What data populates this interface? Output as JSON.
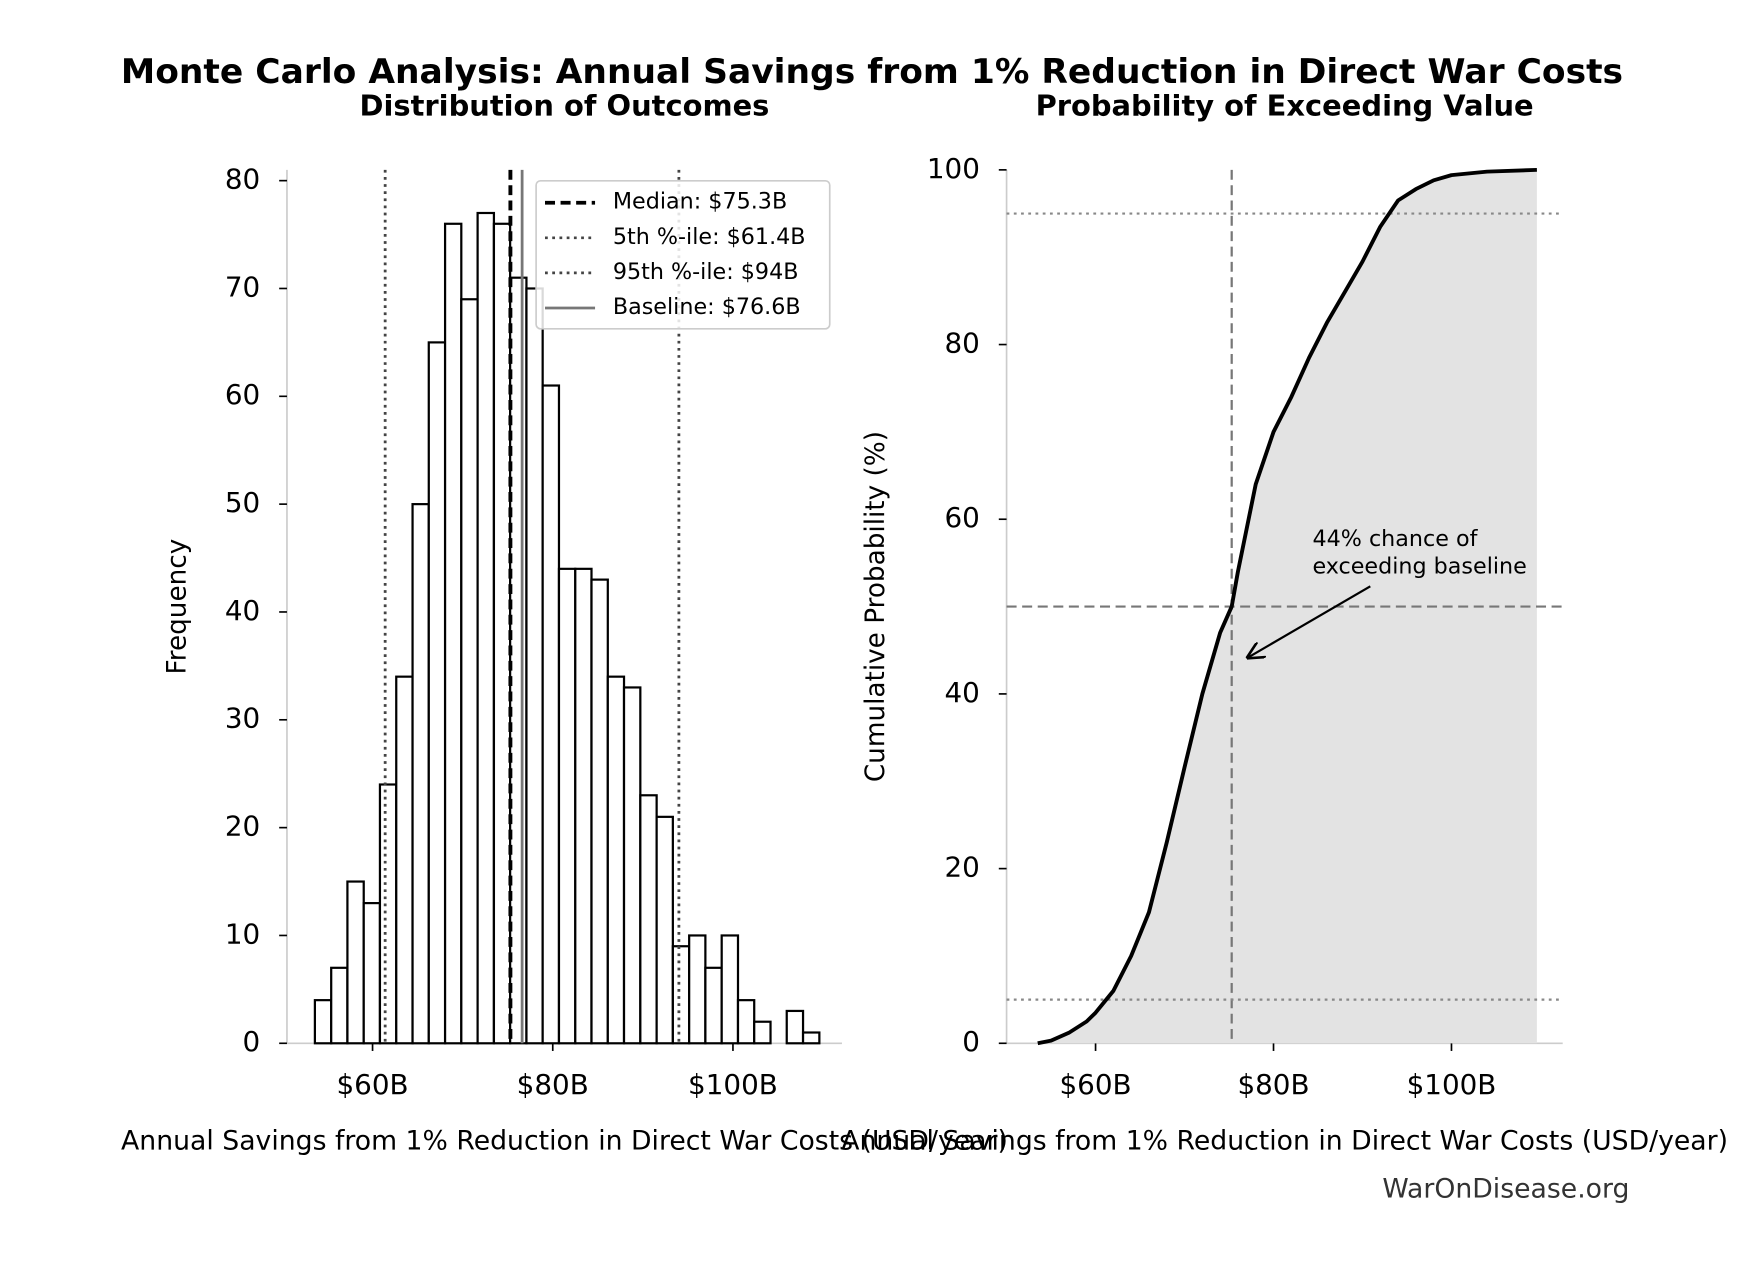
{
  "title": "Monte Carlo Analysis: Annual Savings from 1% Reduction in Direct War Costs",
  "source": "WarOnDisease.org",
  "chart_data": [
    {
      "type": "histogram",
      "title": "Distribution of Outcomes",
      "x_label": "Annual Savings from 1% Reduction in Direct War Costs (USD/year)",
      "y_label": "Frequency",
      "bins": [
        53.6,
        55.41,
        57.21,
        59.02,
        60.82,
        62.63,
        64.44,
        66.24,
        68.05,
        69.85,
        71.66,
        73.47,
        75.27,
        77.08,
        78.88,
        80.69,
        82.5,
        84.3,
        86.11,
        87.91,
        89.72,
        91.53,
        93.33,
        95.14,
        96.94,
        98.75,
        100.56,
        102.36,
        104.17,
        105.97,
        107.78,
        109.59
      ],
      "counts": [
        4,
        7,
        15,
        13,
        24,
        34,
        50,
        65,
        76,
        69,
        77,
        76,
        71,
        70,
        61,
        44,
        44,
        43,
        34,
        33,
        23,
        21,
        9,
        10,
        7,
        10,
        4,
        2,
        0,
        3,
        1
      ],
      "color": "#ffffff",
      "edge_color": "#000000",
      "xlim": [
        50.5,
        112.1
      ],
      "ylim": [
        0,
        81
      ],
      "xticks": [
        {
          "value": 60,
          "label": "$60B"
        },
        {
          "value": 80,
          "label": "$80B"
        },
        {
          "value": 100,
          "label": "$100B"
        }
      ],
      "yticks": [
        0,
        10,
        20,
        30,
        40,
        50,
        60,
        70,
        80
      ],
      "reference_lines": [
        {
          "name": "Median: $75.3B",
          "value": 75.3,
          "style": "dashed",
          "color": "#000000"
        },
        {
          "name": "5th %-ile: $61.4B",
          "value": 61.4,
          "style": "dotted",
          "color": "#444444"
        },
        {
          "name": "95th %-ile: $94B",
          "value": 94,
          "style": "dotted",
          "color": "#444444"
        },
        {
          "name": "Baseline: $76.6B",
          "value": 76.6,
          "style": "solid",
          "color": "#777777"
        }
      ],
      "legend": "upper right"
    },
    {
      "type": "line",
      "title": "Probability of Exceeding Value",
      "x_label": "Annual Savings from 1% Reduction in Direct War Costs (USD/year)",
      "y_label": "Cumulative Probability (%)",
      "x": [
        53.5,
        55,
        57,
        59,
        60,
        62,
        64,
        66,
        68,
        70,
        72,
        74,
        75.3,
        76,
        78,
        80,
        82,
        84,
        86,
        88,
        90,
        92,
        94,
        96,
        98,
        100,
        104,
        109.6
      ],
      "values": [
        0,
        0.3,
        1.2,
        2.5,
        3.5,
        6,
        10,
        15,
        23,
        31.6,
        40,
        47,
        50,
        54,
        64,
        70,
        74,
        78.5,
        82.5,
        86,
        89.5,
        93.5,
        96.5,
        97.8,
        98.8,
        99.4,
        99.8,
        100
      ],
      "color": "#000000",
      "fill_color": "#e3e3e3",
      "xlim": [
        50,
        112.5
      ],
      "ylim": [
        0,
        100
      ],
      "xticks": [
        {
          "value": 60,
          "label": "$60B"
        },
        {
          "value": 80,
          "label": "$80B"
        },
        {
          "value": 100,
          "label": "$100B"
        }
      ],
      "yticks": [
        0,
        20,
        40,
        60,
        80,
        100
      ],
      "vlines": [
        {
          "value": 75.3,
          "style": "dashed",
          "color": "#777777"
        }
      ],
      "hlines": [
        {
          "value": 50,
          "style": "dashed",
          "color": "#777777"
        },
        {
          "value": 5,
          "style": "dotted",
          "color": "#888888"
        },
        {
          "value": 95,
          "style": "dotted",
          "color": "#888888"
        }
      ],
      "annotation": [
        "44% chance of",
        "exceeding baseline"
      ]
    }
  ]
}
